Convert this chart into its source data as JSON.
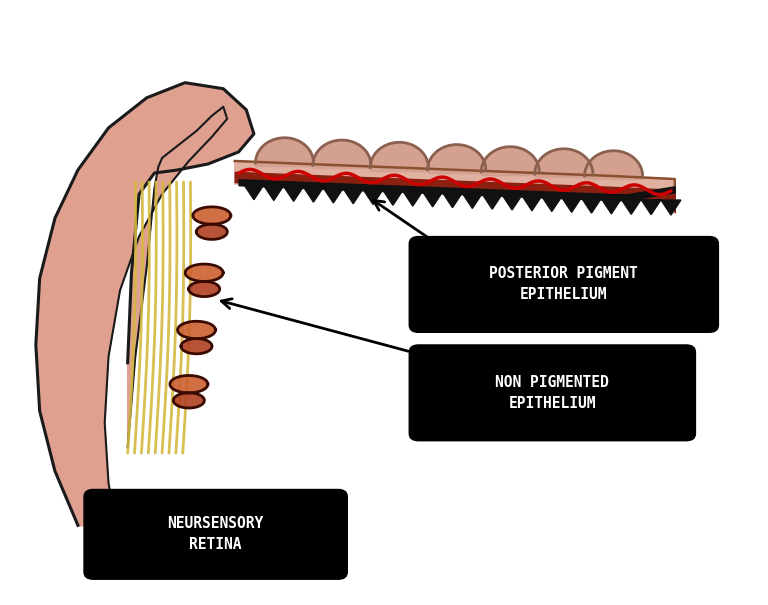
{
  "background_color": "#ffffff",
  "labels": {
    "posterior": "POSTERIOR PIGMENT\nEPITHELIUM",
    "non_pigmented": "NON PIGMENTED\nEPITHELIUM",
    "neursensory": "NEURSENSORY\nRETINA"
  },
  "label_box_color": "#000000",
  "label_text_color": "#ffffff",
  "label_fontsize": 10.5,
  "arrow_color": "#000000",
  "body_fill_color": "#dfa090",
  "body_fill_light": "#e8b8a8",
  "body_outline_color": "#1a1a1a",
  "bump_fill_color": "#d4a090",
  "bump_outline_color": "#8B6050",
  "yellow_color": "#d4b840",
  "process_fill": "#b04020",
  "process_outline": "#3a0a00",
  "process_light": "#cc6030",
  "red_line_color": "#cc0000",
  "teeth_color": "#111111",
  "dark_bar_color": "#111111",
  "flat_fill": "#e0b0a0",
  "flat_outline": "#8B5030"
}
